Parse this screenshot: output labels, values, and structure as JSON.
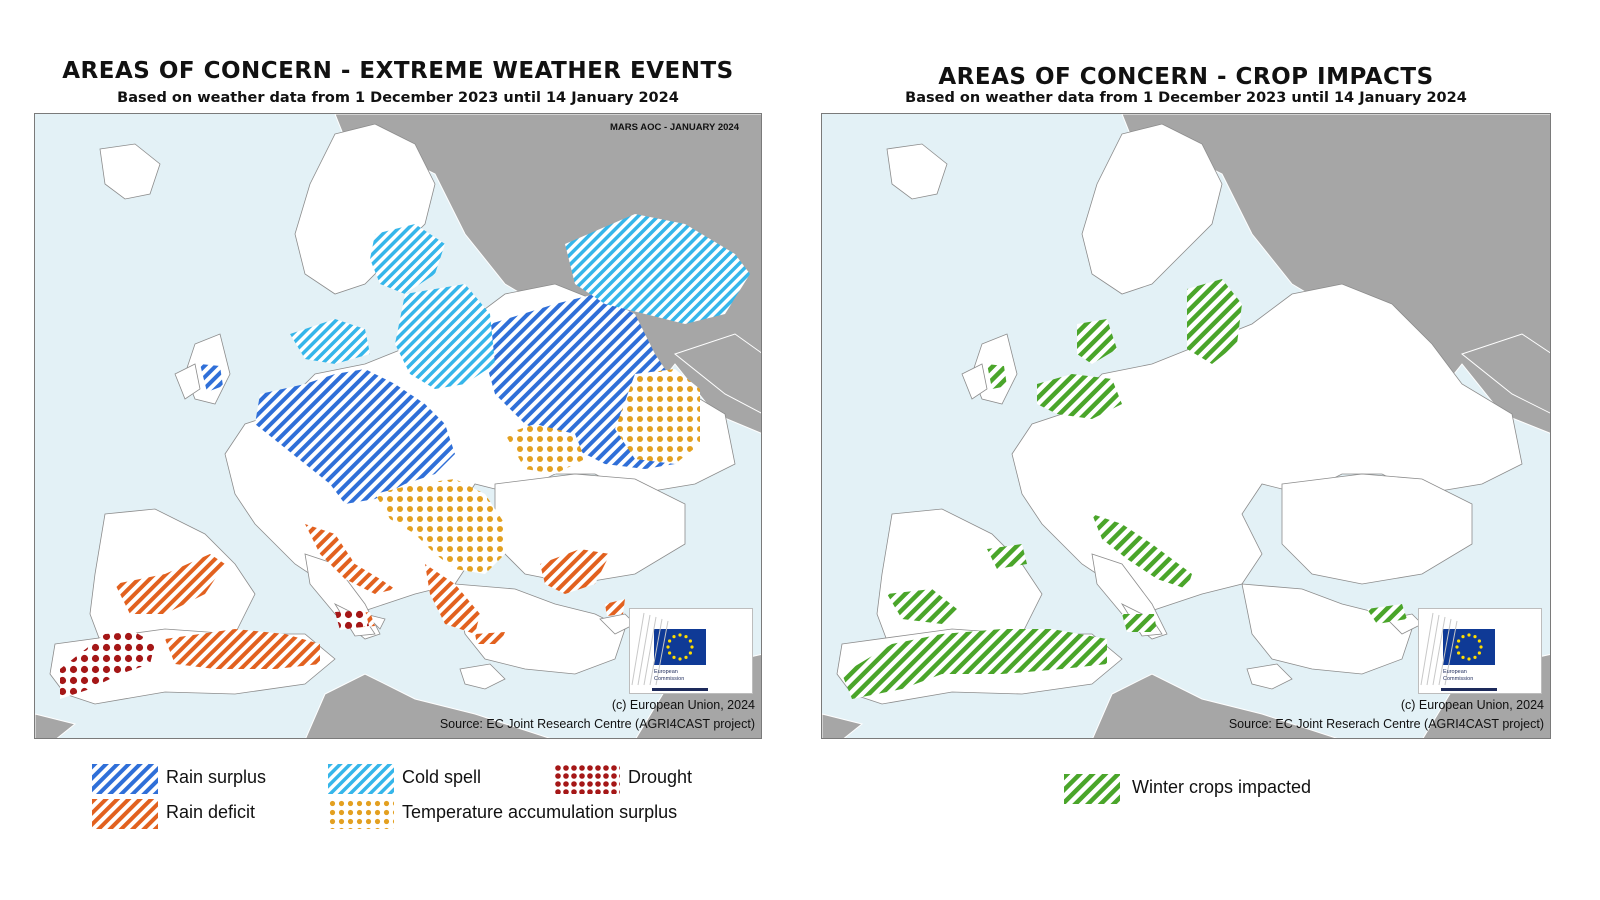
{
  "left_map": {
    "title": "AREAS OF CONCERN - EXTREME WEATHER EVENTS",
    "subtitle": "Based on weather data from 1 December 2023 until 14 January 2024",
    "corner_label": "MARS AOC - JANUARY 2024",
    "copyright": "(c) European Union, 2024",
    "source": "Source: EC Joint Research Centre (AGRI4CAST project)",
    "logo_text_line1": "European",
    "logo_text_line2": "Commission"
  },
  "right_map": {
    "title": "AREAS OF CONCERN - CROP IMPACTS",
    "subtitle": "Based on weather data from 1 December 2023 until 14 January 2024",
    "copyright": "(c) European Union, 2024",
    "source": "Source: EC Joint Reserach Centre (AGRI4CAST project)",
    "logo_text_line1": "European",
    "logo_text_line2": "Commission"
  },
  "legend_left": [
    {
      "label": "Rain surplus",
      "pattern": "stripes",
      "color": "#2f6fd8"
    },
    {
      "label": "Cold spell",
      "pattern": "stripes",
      "color": "#36b6ea"
    },
    {
      "label": "Drought",
      "pattern": "dots",
      "color": "#a51717"
    },
    {
      "label": "Rain deficit",
      "pattern": "stripes",
      "color": "#e2611f"
    },
    {
      "label": "Temperature accumulation surplus",
      "pattern": "dots",
      "color": "#e3a020"
    }
  ],
  "legend_right": [
    {
      "label": "Winter crops impacted",
      "pattern": "stripes",
      "color": "#4aa52a"
    }
  ],
  "colors": {
    "sea": "#e3f1f6",
    "land_in_scope": "#ffffff",
    "land_out_of_scope": "#a6a6a6",
    "rain_surplus": "#2f6fd8",
    "cold_spell": "#36b6ea",
    "drought": "#a51717",
    "rain_deficit": "#e2611f",
    "temperature_accumulation_surplus": "#e3a020",
    "winter_crops_impacted": "#4aa52a"
  }
}
